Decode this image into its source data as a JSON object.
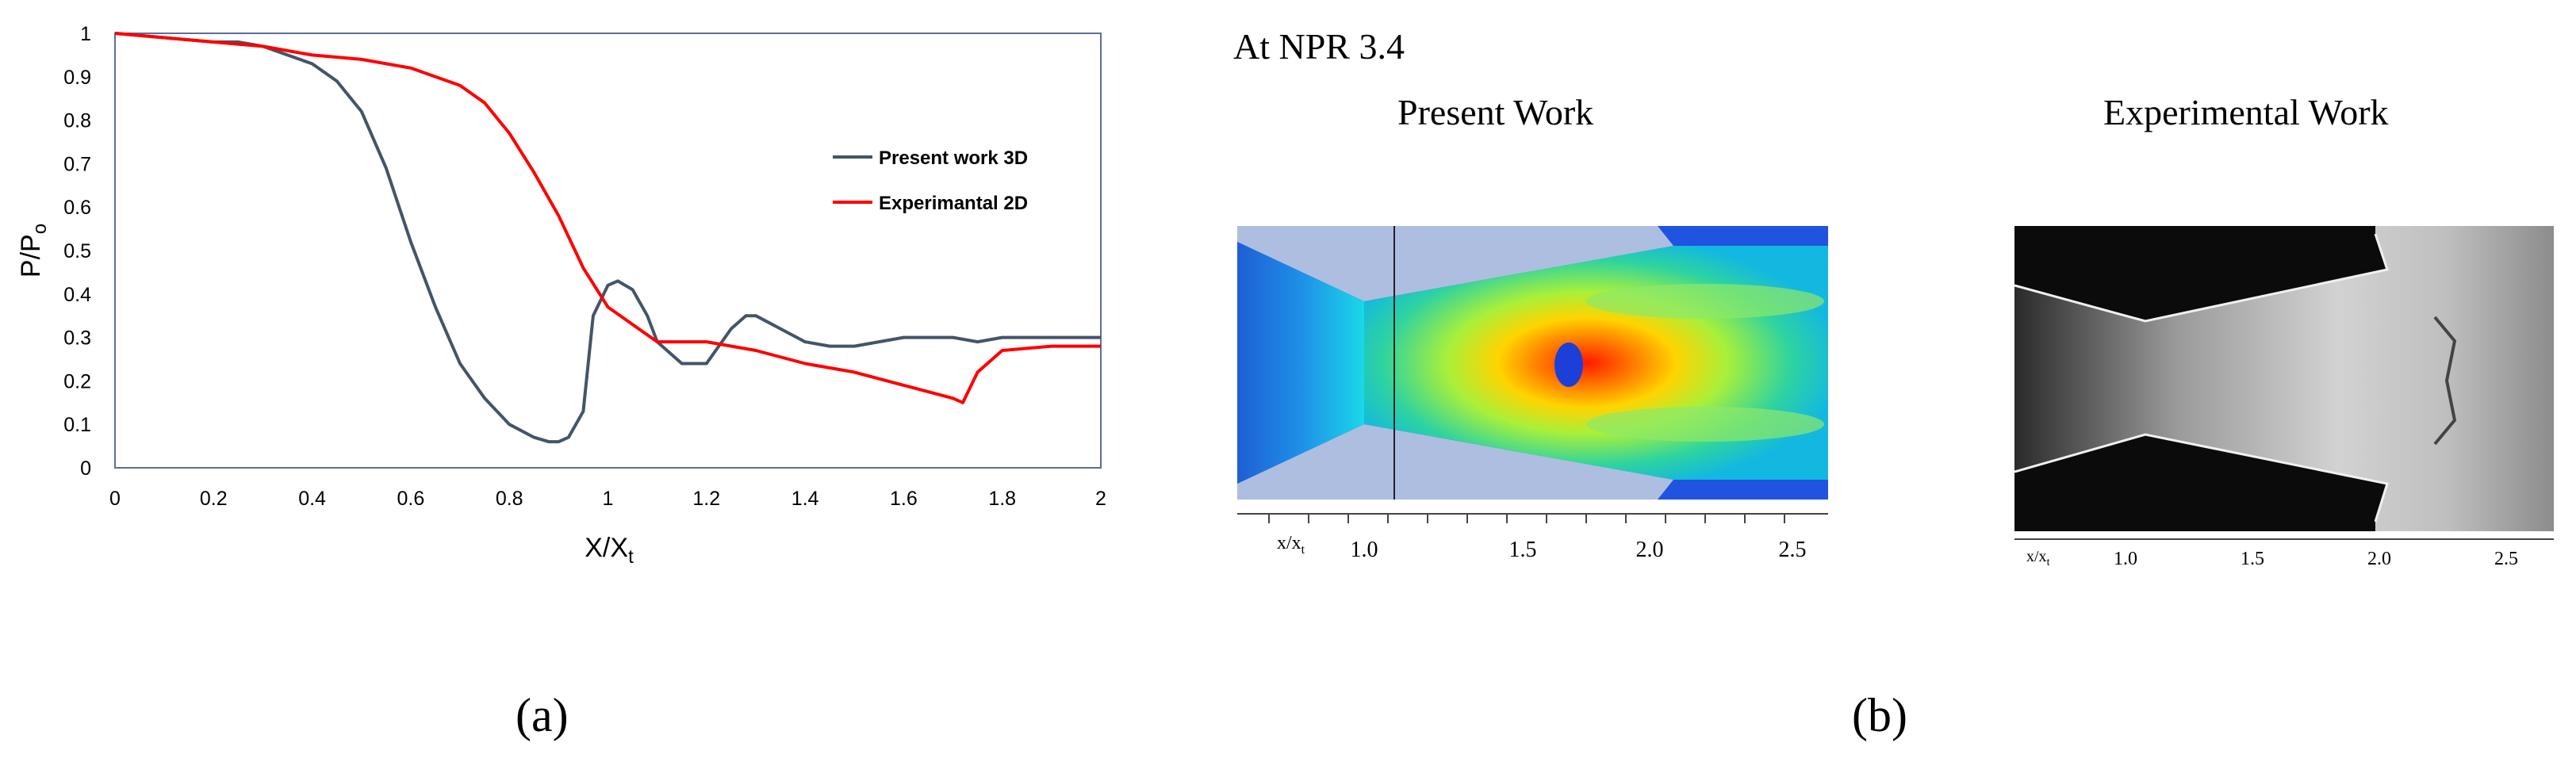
{
  "chart_data": {
    "type": "line",
    "xlabel_main": "X/X",
    "xlabel_sub": "t",
    "ylabel_main": "P/P",
    "ylabel_sub": "o",
    "xlim": [
      0,
      2
    ],
    "ylim": [
      0,
      1
    ],
    "xticks": [
      "0",
      "0.2",
      "0.4",
      "0.6",
      "0.8",
      "1",
      "1.2",
      "1.4",
      "1.6",
      "1.8",
      "2"
    ],
    "yticks": [
      "0",
      "0.1",
      "0.2",
      "0.3",
      "0.4",
      "0.5",
      "0.6",
      "0.7",
      "0.8",
      "0.9",
      "1"
    ],
    "legend_position": "right",
    "series": [
      {
        "name": "Present work 3D",
        "color": "#44546a",
        "x": [
          0,
          0.1,
          0.2,
          0.25,
          0.3,
          0.35,
          0.4,
          0.45,
          0.5,
          0.55,
          0.6,
          0.65,
          0.7,
          0.75,
          0.8,
          0.85,
          0.88,
          0.9,
          0.92,
          0.95,
          0.97,
          1.0,
          1.02,
          1.05,
          1.08,
          1.1,
          1.15,
          1.2,
          1.25,
          1.28,
          1.3,
          1.35,
          1.4,
          1.45,
          1.5,
          1.55,
          1.6,
          1.65,
          1.7,
          1.75,
          1.8,
          1.85,
          1.9,
          2.0
        ],
        "y": [
          1.0,
          0.99,
          0.98,
          0.98,
          0.97,
          0.95,
          0.93,
          0.89,
          0.82,
          0.69,
          0.52,
          0.37,
          0.24,
          0.16,
          0.1,
          0.07,
          0.06,
          0.06,
          0.07,
          0.13,
          0.35,
          0.42,
          0.43,
          0.41,
          0.35,
          0.29,
          0.24,
          0.24,
          0.32,
          0.35,
          0.35,
          0.32,
          0.29,
          0.28,
          0.28,
          0.29,
          0.3,
          0.3,
          0.3,
          0.29,
          0.3,
          0.3,
          0.3,
          0.3
        ]
      },
      {
        "name": "Experimantal 2D",
        "color": "#ff0000",
        "x": [
          0,
          0.2,
          0.3,
          0.4,
          0.5,
          0.6,
          0.7,
          0.75,
          0.8,
          0.85,
          0.9,
          0.95,
          1.0,
          1.05,
          1.1,
          1.15,
          1.2,
          1.3,
          1.4,
          1.5,
          1.6,
          1.7,
          1.72,
          1.75,
          1.8,
          1.9,
          2.0
        ],
        "y": [
          1.0,
          0.98,
          0.97,
          0.95,
          0.94,
          0.92,
          0.88,
          0.84,
          0.77,
          0.68,
          0.58,
          0.46,
          0.37,
          0.33,
          0.29,
          0.29,
          0.29,
          0.27,
          0.24,
          0.22,
          0.19,
          0.16,
          0.15,
          0.22,
          0.27,
          0.28,
          0.28
        ]
      }
    ]
  },
  "panel_a_label": "(a)",
  "panel_b": {
    "label": "(b)",
    "heading": "At NPR 3.4",
    "present_title": "Present Work",
    "experimental_title": "Experimental Work",
    "axis_var_main": "x/x",
    "axis_var_sub": "t",
    "present_ticks": [
      "1.0",
      "1.5",
      "2.0",
      "2.5"
    ],
    "experimental_ticks": [
      "1.0",
      "1.5",
      "2.0",
      "2.5"
    ]
  }
}
